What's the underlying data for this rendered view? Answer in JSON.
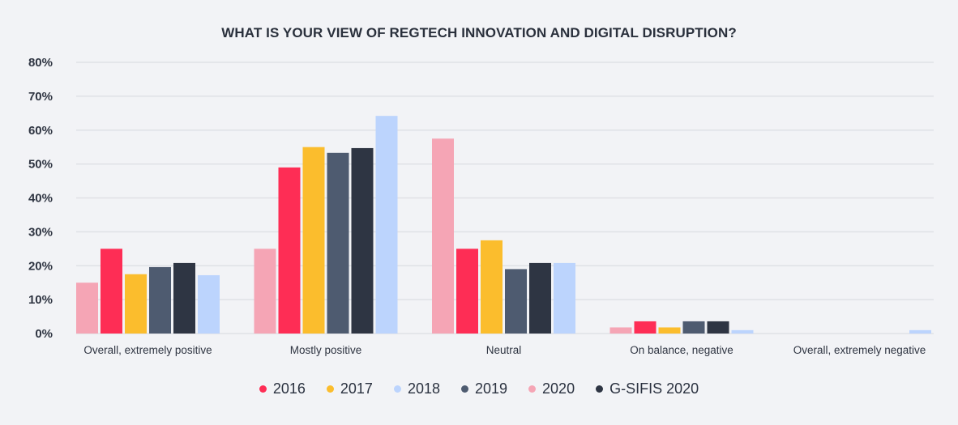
{
  "chart_data": {
    "type": "bar",
    "title": "WHAT IS YOUR VIEW OF REGTECH INNOVATION AND DIGITAL DISRUPTION?",
    "xlabel": "",
    "ylabel": "",
    "ylim": [
      0,
      80
    ],
    "yticks": [
      0,
      10,
      20,
      30,
      40,
      50,
      60,
      70,
      80
    ],
    "ytick_labels": [
      "0%",
      "10%",
      "20%",
      "30%",
      "40%",
      "50%",
      "60%",
      "70%",
      "80%"
    ],
    "grid": true,
    "legend_position": "bottom-center",
    "categories": [
      "Overall, extremely positive",
      "Mostly positive",
      "Neutral",
      "On balance, negative",
      "Overall, extremely negative"
    ],
    "bar_order": [
      "2020",
      "2016",
      "2017",
      "2019",
      "G-SIFIS 2020",
      "2018"
    ],
    "legend_order": [
      "2016",
      "2017",
      "2018",
      "2019",
      "2020",
      "G-SIFIS 2020"
    ],
    "series": [
      {
        "name": "2016",
        "color": "#fe2d55",
        "values": [
          25,
          49,
          25,
          3.6,
          0
        ]
      },
      {
        "name": "2017",
        "color": "#fbbd2d",
        "values": [
          17.5,
          55,
          27.5,
          1.8,
          0
        ]
      },
      {
        "name": "2018",
        "color": "#bcd4fd",
        "values": [
          17.2,
          64.2,
          20.8,
          1,
          1
        ]
      },
      {
        "name": "2019",
        "color": "#4e5b70",
        "values": [
          19.6,
          53.3,
          19,
          3.6,
          0
        ]
      },
      {
        "name": "2020",
        "color": "#f5a5b5",
        "values": [
          15,
          25,
          57.5,
          1.8,
          0
        ]
      },
      {
        "name": "G-SIFIS 2020",
        "color": "#2e3543",
        "values": [
          20.8,
          54.7,
          20.8,
          3.6,
          0
        ]
      }
    ]
  }
}
